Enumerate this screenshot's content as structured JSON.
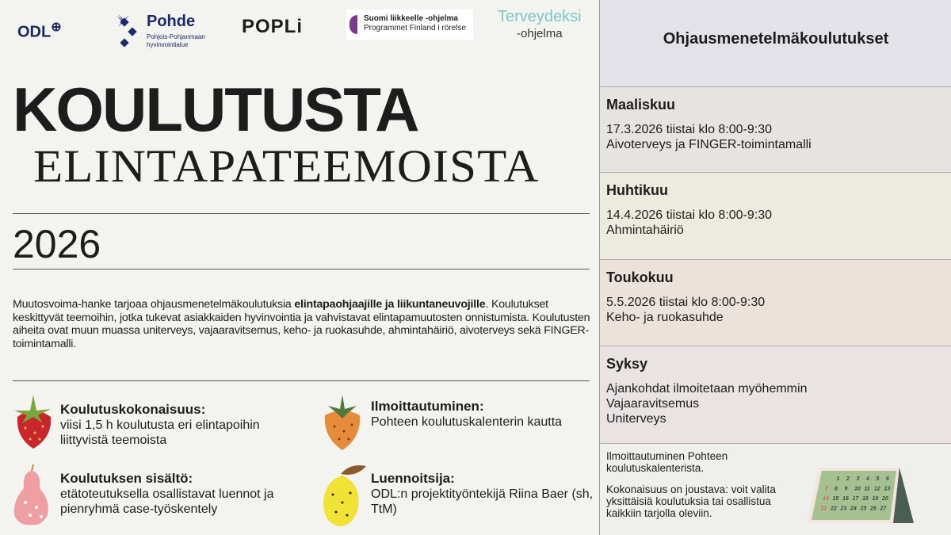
{
  "logos": {
    "odl": "ODL",
    "pohde_name": "Pohde",
    "pohde_sub1": "Pohjois-Pohjanmaan",
    "pohde_sub2": "hyvinvointialue",
    "popli": "POPLi",
    "suomi1": "Suomi liikkeelle -ohjelma",
    "suomi2": "Programmet Finland i rörelse",
    "terv1": "Terveydeksi",
    "terv2": "-ohjelma"
  },
  "title1": "KOULUTUSTA",
  "title2": "ELINTAPATEEMOISTA",
  "year": "2026",
  "intro": {
    "pre": "Muutosvoima-hanke tarjoaa ohjausmenetelmäkoulutuksia ",
    "bold": "elintapaohjaajille ja liikuntaneuvojille",
    "post": ". Koulutukset keskittyvät teemoihin, jotka tukevat asiakkaiden hyvinvointia ja vahvistavat elintapamuutosten onnistumista. Koulutusten aiheita ovat muun muassa uniterveys, vajaaravitsemus, keho- ja ruokasuhde, ahmintahäiriö, aivoterveys sekä FINGER-toimintamalli."
  },
  "features": [
    {
      "heading": "Koulutuskokonaisuus:",
      "text": "viisi 1,5 h koulutusta eri elintapoihin liittyvistä teemoista"
    },
    {
      "heading": "Ilmoittautuminen:",
      "text": "Pohteen koulutuskalenterin kautta"
    },
    {
      "heading": "Koulutuksen sisältö:",
      "text": "etätoteutuksella osallistavat luennot ja pienryhmä case-työskentely"
    },
    {
      "heading": "Luennoitsija:",
      "text": "ODL:n projektityöntekijä Riina Baer (sh, TtM)"
    }
  ],
  "panel": {
    "title": "Ohjausmenetelmäkoulutukset",
    "sections": [
      {
        "month": "Maaliskuu",
        "lines": [
          "17.3.2026 tiistai klo 8:00-9:30",
          "Aivoterveys ja FINGER-toimintamalli"
        ],
        "color": "#e5e4e0"
      },
      {
        "month": "Huhtikuu",
        "lines": [
          "14.4.2026 tiistai klo 8:00-9:30",
          "Ahmintahäiriö"
        ],
        "color": "#ecebdf"
      },
      {
        "month": "Toukokuu",
        "lines": [
          "5.5.2026 tiistai klo 8:00-9:30",
          "Keho- ja ruokasuhde"
        ],
        "color": "#ebe2dc"
      },
      {
        "month": "Syksy",
        "lines": [
          "Ajankohdat ilmoitetaan myöhemmin",
          "Vajaaravitsemus",
          "Uniterveys"
        ],
        "color": "#e9e3e3"
      }
    ],
    "footer": [
      "Ilmoittautuminen Pohteen koulutuskalenterista.",
      "Kokonaisuus on joustava: voit valita yksittäisiä koulutuksia tai osallistua kaikkiin tarjolla oleviin."
    ],
    "calendar_days": [
      [
        "",
        "1",
        "2",
        "3",
        "4",
        "5",
        "6"
      ],
      [
        "7",
        "8",
        "9",
        "10",
        "11",
        "12",
        "13"
      ],
      [
        "14",
        "15",
        "16",
        "17",
        "18",
        "19",
        "20"
      ],
      [
        "21",
        "22",
        "23",
        "24",
        "25",
        "26",
        "27"
      ]
    ]
  }
}
